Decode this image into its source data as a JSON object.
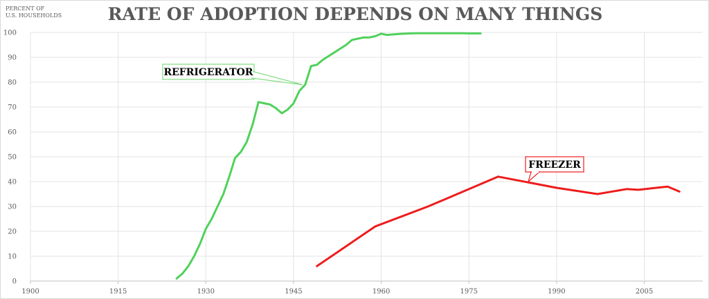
{
  "chart_data": {
    "type": "line",
    "title": "RATE OF ADOPTION DEPENDS ON MANY THINGS",
    "ylabel_lines": [
      "PERCENT OF",
      "U.S. HOUSEHOLDS"
    ],
    "xlabel": "",
    "xlim": [
      1900,
      2015
    ],
    "ylim": [
      0,
      100
    ],
    "x_ticks": [
      1900,
      1915,
      1930,
      1945,
      1960,
      1975,
      1990,
      2005
    ],
    "y_ticks": [
      0,
      10,
      20,
      30,
      40,
      50,
      60,
      70,
      80,
      90,
      100
    ],
    "grid": true,
    "series": [
      {
        "name": "REFRIGERATOR",
        "color": "#4fd15a",
        "x": [
          1925,
          1926,
          1927,
          1928,
          1929,
          1930,
          1931,
          1932,
          1933,
          1934,
          1935,
          1936,
          1937,
          1938,
          1939,
          1940,
          1941,
          1942,
          1943,
          1944,
          1945,
          1946,
          1947,
          1948,
          1949,
          1950,
          1951,
          1952,
          1953,
          1954,
          1955,
          1956,
          1957,
          1958,
          1959,
          1960,
          1961,
          1962,
          1963,
          1964,
          1965,
          1966,
          1967,
          1968,
          1969,
          1970,
          1971,
          1972,
          1973,
          1974,
          1975,
          1976,
          1977
        ],
        "values": [
          1,
          3,
          6,
          10,
          15,
          21,
          25,
          30,
          35,
          42,
          49.5,
          52,
          56,
          63,
          72,
          71.5,
          71,
          69.5,
          67.5,
          69,
          71.5,
          76.5,
          79,
          86.5,
          87,
          89,
          90.5,
          92,
          93.5,
          95,
          97,
          97.5,
          98,
          98,
          98.5,
          99.5,
          99,
          99.2,
          99.4,
          99.5,
          99.6,
          99.7,
          99.7,
          99.7,
          99.7,
          99.7,
          99.7,
          99.7,
          99.7,
          99.7,
          99.6,
          99.6,
          99.6
        ]
      },
      {
        "name": "FREEZER",
        "color": "#ee1c1c",
        "x": [
          1949,
          1959,
          1968,
          1980,
          1990,
          1997,
          2002,
          2004,
          2007,
          2009,
          2011
        ],
        "values": [
          6,
          22,
          30,
          42,
          37.5,
          35,
          37,
          36.7,
          37.5,
          38,
          36
        ]
      }
    ],
    "annotations": [
      {
        "label": "REFRIGERATOR",
        "border_color": "#7fdc7f"
      },
      {
        "label": "FREEZER",
        "border_color": "#ee1c1c"
      }
    ]
  }
}
